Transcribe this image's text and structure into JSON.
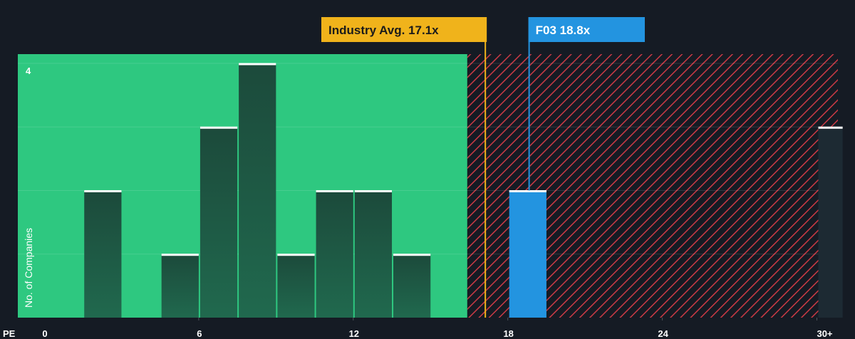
{
  "chart_data": {
    "type": "bar",
    "title": "",
    "xlabel": "PE",
    "ylabel": "No. of Companies",
    "xlim": [
      0,
      31
    ],
    "ylim": [
      0,
      4
    ],
    "x_ticks": [
      "0",
      "6",
      "12",
      "18",
      "24",
      "30+"
    ],
    "y_ticks": [
      "4"
    ],
    "grid": true,
    "fair_zone_max": 16.4,
    "colors": {
      "fair_zone": "#2ec880",
      "expensive_hatch": "#cc3a45",
      "bar": "#1f4d3f",
      "highlight_bar": "#2394e0",
      "industry": "#f0b31b",
      "background": "#151b24"
    },
    "bins": [
      {
        "x0": 1.5,
        "x1": 3.0,
        "value": 2
      },
      {
        "x0": 4.5,
        "x1": 6.0,
        "value": 1
      },
      {
        "x0": 6.0,
        "x1": 7.5,
        "value": 3
      },
      {
        "x0": 7.5,
        "x1": 9.0,
        "value": 4
      },
      {
        "x0": 9.0,
        "x1": 10.5,
        "value": 1
      },
      {
        "x0": 10.5,
        "x1": 12.0,
        "value": 2
      },
      {
        "x0": 12.0,
        "x1": 13.5,
        "value": 2
      },
      {
        "x0": 13.5,
        "x1": 15.0,
        "value": 1
      },
      {
        "x0": 30.0,
        "x1": 31.0,
        "value": 3
      }
    ],
    "highlight_bin": {
      "x0": 18.0,
      "x1": 19.5,
      "value": 2
    },
    "annotations": {
      "industry": {
        "label": "Industry Avg. 17.1x",
        "value": 17.1
      },
      "company": {
        "label": "F03 18.8x",
        "value": 18.8
      }
    }
  }
}
